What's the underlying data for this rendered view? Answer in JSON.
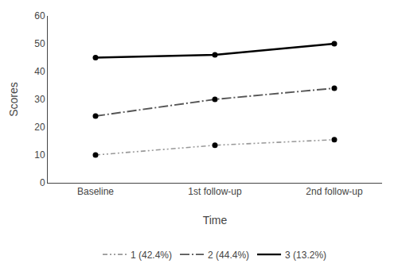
{
  "chart_data": {
    "type": "line",
    "xlabel": "Time",
    "ylabel": "Scores",
    "categories": [
      "Baseline",
      "1st follow-up",
      "2nd follow-up"
    ],
    "series": [
      {
        "name": "1 (42.4%)",
        "color": "#999999",
        "line_style": "dashdotdot",
        "values": [
          10,
          13.5,
          15.5
        ]
      },
      {
        "name": "2 (44.4%)",
        "color": "#555555",
        "line_style": "dashdot",
        "values": [
          24,
          30,
          34
        ]
      },
      {
        "name": "3 (13.2%)",
        "color": "#000000",
        "line_style": "solid",
        "values": [
          45,
          46,
          50
        ]
      }
    ],
    "ylim": [
      0,
      60
    ],
    "yticks": [
      0,
      10,
      20,
      30,
      40,
      50,
      60
    ],
    "grid": false,
    "legend": "bottom",
    "marker": "circle"
  }
}
